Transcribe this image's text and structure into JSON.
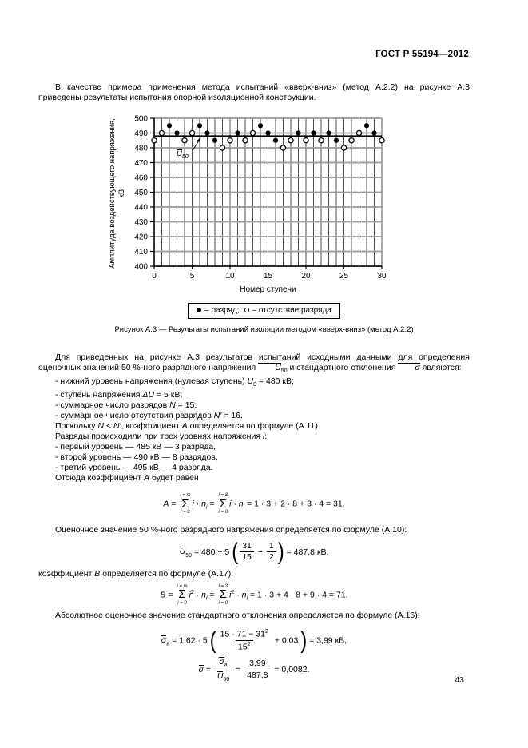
{
  "header": {
    "title": "ГОСТ Р 55194—2012"
  },
  "page_number": "43",
  "intro": {
    "tokens": [
      {
        "t": "В качестве примера применения метода испытаний «вверх-вниз» (метод А.2.2) на рисунке А.3 приведены результаты испытания опорной изоляционной конструкции."
      }
    ]
  },
  "chart_data": {
    "type": "scatter",
    "xlabel": "Номер ступени",
    "ylabel": "Амплитуда воздействующего напряжения, кВ",
    "xlim": [
      0,
      30
    ],
    "ylim": [
      400,
      500
    ],
    "xticks": [
      0,
      5,
      10,
      15,
      20,
      25,
      30
    ],
    "yticks": [
      400,
      410,
      420,
      430,
      440,
      450,
      460,
      470,
      480,
      490,
      500
    ],
    "grid": "both",
    "reference_line": {
      "value": 487.8,
      "label": "U50"
    },
    "series": [
      {
        "name": "разряд",
        "marker": "filled-circle",
        "points": [
          [
            2,
            495
          ],
          [
            3,
            490
          ],
          [
            6,
            495
          ],
          [
            7,
            490
          ],
          [
            8,
            485
          ],
          [
            11,
            490
          ],
          [
            14,
            495
          ],
          [
            15,
            490
          ],
          [
            16,
            485
          ],
          [
            19,
            490
          ],
          [
            21,
            490
          ],
          [
            23,
            490
          ],
          [
            24,
            485
          ],
          [
            28,
            495
          ],
          [
            29,
            490
          ]
        ]
      },
      {
        "name": "отсутствие разряда",
        "marker": "open-circle",
        "points": [
          [
            0,
            485
          ],
          [
            1,
            490
          ],
          [
            4,
            485
          ],
          [
            5,
            490
          ],
          [
            9,
            480
          ],
          [
            10,
            485
          ],
          [
            12,
            485
          ],
          [
            13,
            490
          ],
          [
            17,
            480
          ],
          [
            18,
            485
          ],
          [
            20,
            485
          ],
          [
            22,
            485
          ],
          [
            25,
            480
          ],
          [
            26,
            485
          ],
          [
            27,
            490
          ],
          [
            30,
            485
          ]
        ]
      }
    ]
  },
  "figure": {
    "u50_label_tokens": [
      {
        "t": "U",
        "it": 1,
        "ovl": 1
      },
      {
        "t": "50",
        "sub": 1
      }
    ],
    "legend": {
      "items": [
        {
          "symbol": "●",
          "label": "– разряд;"
        },
        {
          "symbol": "○",
          "label": "– отсутствие разряда"
        }
      ]
    },
    "caption": "Рисунок А.3 — Результаты испытаний изоляции методом «вверх-вниз» (метод А.2.2)"
  },
  "body": {
    "blocks": [
      {
        "type": "line",
        "ind": true,
        "tokens": [
          {
            "t": "Для приведенных на рисунке А.3 результатов испытаний исходными данными для определения оценочных значений 50 %-ного разрядного напряжения "
          },
          {
            "t": "U",
            "it": 1,
            "ovl": 1
          },
          {
            "t": "50",
            "sub": 1
          },
          {
            "t": " и стандартного отклонения "
          },
          {
            "t": "σ",
            "it": 1,
            "ovl": 1
          },
          {
            "t": " являются:"
          }
        ]
      },
      {
        "type": "line",
        "ind": true,
        "tokens": [
          {
            "t": "- нижний уровень напряжения (нулевая ступень) "
          },
          {
            "t": "U",
            "it": 1
          },
          {
            "t": "0",
            "sub": 1
          },
          {
            "t": " = 480 кВ;"
          }
        ]
      },
      {
        "type": "line",
        "ind": true,
        "tokens": [
          {
            "t": "- ступень напряжения "
          },
          {
            "t": "ΔU",
            "it": 1
          },
          {
            "t": " = 5 кВ;"
          }
        ]
      },
      {
        "type": "line",
        "ind": true,
        "tokens": [
          {
            "t": "- суммарное число разрядов "
          },
          {
            "t": "N",
            "it": 1
          },
          {
            "t": " = 15;"
          }
        ]
      },
      {
        "type": "line",
        "ind": true,
        "tokens": [
          {
            "t": "- суммарное число отсутствия разрядов "
          },
          {
            "t": "N′",
            "it": 1
          },
          {
            "t": " = 16."
          }
        ]
      },
      {
        "type": "line",
        "ind": true,
        "tokens": [
          {
            "t": "Поскольку "
          },
          {
            "t": "N",
            "it": 1
          },
          {
            "t": " < "
          },
          {
            "t": "N′",
            "it": 1
          },
          {
            "t": ", коэффициент "
          },
          {
            "t": "А",
            "it": 1
          },
          {
            "t": " определяется по формуле (А.11)."
          }
        ]
      },
      {
        "type": "line",
        "ind": true,
        "tokens": [
          {
            "t": "Разряды происходили при трех уровнях напряжения "
          },
          {
            "t": "i",
            "it": 1
          },
          {
            "t": ":"
          }
        ]
      },
      {
        "type": "line",
        "ind": true,
        "tokens": [
          {
            "t": "- первый уровень — 485 кВ — 3 разряда,"
          }
        ]
      },
      {
        "type": "line",
        "ind": true,
        "tokens": [
          {
            "t": "- второй уровень — 490 кВ — 8 разрядов,"
          }
        ]
      },
      {
        "type": "line",
        "ind": true,
        "tokens": [
          {
            "t": "- третий уровень — 495 кВ — 4 разряда."
          }
        ]
      },
      {
        "type": "line",
        "ind": true,
        "tokens": [
          {
            "t": "Отсюда коэффициент "
          },
          {
            "t": "А",
            "it": 1
          },
          {
            "t": " будет равен"
          }
        ]
      },
      {
        "type": "formula",
        "cls": "f-a",
        "name": "formula-a",
        "tokens": [
          {
            "t": "A",
            "it": 1
          },
          {
            "t": " = "
          },
          {
            "sum": {
              "sym": "Σ",
              "top": "i = m",
              "bot": "i = 0"
            }
          },
          {
            "t": "i",
            "it": 1
          },
          {
            "t": " · "
          },
          {
            "t": "n",
            "it": 1
          },
          {
            "t": "i",
            "sub": 1,
            "it": 1
          },
          {
            "t": " = "
          },
          {
            "sum": {
              "sym": "Σ",
              "top": "i = 3",
              "bot": "i = 0"
            }
          },
          {
            "t": "i",
            "it": 1
          },
          {
            "t": " · "
          },
          {
            "t": "n",
            "it": 1
          },
          {
            "t": "i",
            "sub": 1,
            "it": 1
          },
          {
            "t": " = 1 · 3 + 2 · 8 + 3 · 4 = 31."
          }
        ]
      },
      {
        "type": "line",
        "ind": true,
        "tokens": [
          {
            "t": "Оценочное значение 50 %-ного разрядного напряжения определяется по формуле (А.10):"
          }
        ]
      },
      {
        "type": "formula",
        "cls": "f-u50",
        "name": "formula-u50",
        "tokens": [
          {
            "t": "U",
            "it": 1,
            "ovl": 1
          },
          {
            "t": "50",
            "sub": 1
          },
          {
            "t": " = 480 + 5 "
          },
          {
            "big": "("
          },
          {
            "frac": {
              "num": [
                {
                  "t": "31"
                }
              ],
              "den": [
                {
                  "t": "15"
                }
              ]
            }
          },
          {
            "t": " − "
          },
          {
            "frac": {
              "num": [
                {
                  "t": "1"
                }
              ],
              "den": [
                {
                  "t": "2"
                }
              ]
            }
          },
          {
            "big": ")"
          },
          {
            "t": " = 487,8 кВ,"
          }
        ]
      },
      {
        "type": "line",
        "ind": false,
        "tokens": [
          {
            "t": "коэффициент "
          },
          {
            "t": "B",
            "it": 1
          },
          {
            "t": " определяется по формуле (А.17):"
          }
        ]
      },
      {
        "type": "formula",
        "cls": "f-b",
        "name": "formula-b",
        "tokens": [
          {
            "t": "B",
            "it": 1
          },
          {
            "t": " = "
          },
          {
            "sum": {
              "sym": "Σ",
              "top": "i = m",
              "bot": "i = 0"
            }
          },
          {
            "t": "i",
            "it": 1
          },
          {
            "t": "2",
            "sup": 1
          },
          {
            "t": " · "
          },
          {
            "t": "n",
            "it": 1
          },
          {
            "t": "i",
            "sub": 1,
            "it": 1
          },
          {
            "t": " = "
          },
          {
            "sum": {
              "sym": "Σ",
              "top": "i = 3",
              "bot": "i = 0"
            }
          },
          {
            "t": "i",
            "it": 1
          },
          {
            "t": "2",
            "sup": 1
          },
          {
            "t": " · "
          },
          {
            "t": "n",
            "it": 1
          },
          {
            "t": "i",
            "sub": 1,
            "it": 1
          },
          {
            "t": " = 1 · 3 + 4 · 8 + 9 · 4 = 71."
          }
        ]
      },
      {
        "type": "line",
        "ind": true,
        "tokens": [
          {
            "t": "Абсолютное оценочное значение стандартного отклонения определяется по формуле (А.16):"
          }
        ]
      },
      {
        "type": "formula",
        "cls": "f-sa",
        "name": "formula-sigma-abs",
        "tokens": [
          {
            "t": "σ",
            "it": 1,
            "ovl": 1
          },
          {
            "t": "а",
            "sub": 1
          },
          {
            "t": " = 1,62 · 5 "
          },
          {
            "big": "("
          },
          {
            "frac": {
              "num": [
                {
                  "t": "15 · 71 − 31"
                },
                {
                  "t": "2",
                  "sup": 1
                }
              ],
              "den": [
                {
                  "t": "15"
                },
                {
                  "t": "2",
                  "sup": 1
                }
              ]
            }
          },
          {
            "t": " + 0,03 "
          },
          {
            "big": ")"
          },
          {
            "t": " = 3,99 кВ,"
          }
        ]
      },
      {
        "type": "formula",
        "cls": "f-s",
        "name": "formula-sigma",
        "tokens": [
          {
            "t": "σ",
            "it": 1,
            "ovl": 1
          },
          {
            "t": " = "
          },
          {
            "frac": {
              "num": [
                {
                  "t": "σ",
                  "it": 1,
                  "ovl": 1
                },
                {
                  "t": "а",
                  "sub": 1
                }
              ],
              "den": [
                {
                  "t": "U",
                  "it": 1,
                  "ovl": 1
                },
                {
                  "t": "50",
                  "sub": 1
                }
              ]
            }
          },
          {
            "t": " = "
          },
          {
            "frac": {
              "num": [
                {
                  "t": "3,99"
                }
              ],
              "den": [
                {
                  "t": "487,8"
                }
              ]
            }
          },
          {
            "t": " = 0,0082."
          }
        ]
      }
    ]
  }
}
